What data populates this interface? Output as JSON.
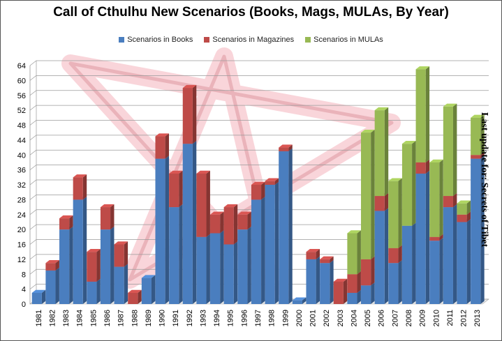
{
  "chart_data": {
    "type": "bar",
    "stacked": true,
    "title": "Call of Cthulhu  New Scenarios  (Books, Mags, MULAs, By Year)",
    "xlabel": "",
    "ylabel": "",
    "ylim": [
      0,
      64
    ],
    "yticks": [
      0,
      4,
      8,
      12,
      16,
      20,
      24,
      28,
      32,
      36,
      40,
      44,
      48,
      52,
      56,
      60,
      64
    ],
    "grid": true,
    "legend_position": "top",
    "categories": [
      "1981",
      "1982",
      "1983",
      "1984",
      "1985",
      "1986",
      "1987",
      "1988",
      "1989",
      "1990",
      "1991",
      "1992",
      "1993",
      "1994",
      "1995",
      "1996",
      "1997",
      "1998",
      "1999",
      "2000",
      "2001",
      "2002",
      "2003",
      "2004",
      "2005",
      "2006",
      "2007",
      "2008",
      "2009",
      "2010",
      "2011",
      "2012",
      "2013"
    ],
    "series": [
      {
        "name": "Scenarios in Books",
        "color": "#4a7ebf",
        "values": [
          3,
          9,
          20,
          28,
          6,
          20,
          10,
          0,
          7,
          39,
          26,
          43,
          18,
          19,
          16,
          20,
          28,
          32,
          41,
          1,
          12,
          11,
          0,
          3,
          5,
          25,
          11,
          21,
          35,
          17,
          26,
          22,
          39
        ]
      },
      {
        "name": "Scenarios in Magazines",
        "color": "#be4b48",
        "values": [
          0,
          2,
          3,
          6,
          8,
          6,
          6,
          3,
          0,
          6,
          9,
          15,
          17,
          5,
          10,
          4,
          4,
          1,
          1,
          0,
          2,
          1,
          6,
          5,
          7,
          4,
          4,
          0,
          3,
          1,
          3,
          2,
          1
        ]
      },
      {
        "name": "Scenarios in MULAs",
        "color": "#98b954",
        "values": [
          0,
          0,
          0,
          0,
          0,
          0,
          0,
          0,
          0,
          0,
          0,
          0,
          0,
          0,
          0,
          0,
          0,
          0,
          0,
          0,
          0,
          0,
          0,
          11,
          34,
          23,
          18,
          22,
          25,
          20,
          24,
          3,
          10
        ]
      }
    ]
  },
  "side_note": "Last update for: Secrets of Tibet"
}
